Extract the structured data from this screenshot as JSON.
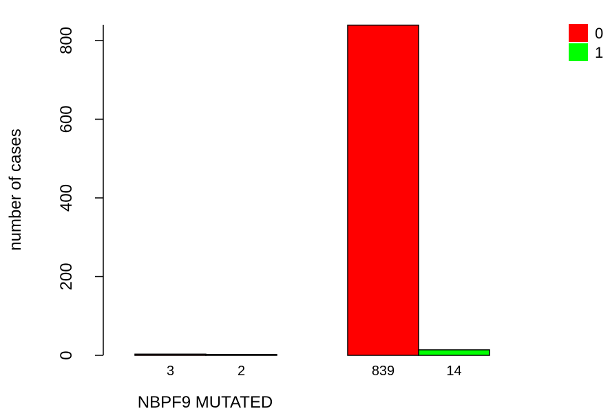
{
  "chart_data": {
    "type": "bar",
    "title": "",
    "xlabel": "NBPF9 MUTATED",
    "ylabel": "number of cases",
    "ylim": [
      0,
      840
    ],
    "yticks": [
      0,
      200,
      400,
      600,
      800
    ],
    "grid": false,
    "legend_position": "top-right",
    "groups": [
      "",
      ""
    ],
    "series": [
      {
        "name": "0",
        "color": "#ff0000",
        "values": [
          3,
          839
        ]
      },
      {
        "name": "1",
        "color": "#00ff00",
        "values": [
          2,
          14
        ]
      }
    ],
    "bar_labels": [
      [
        "3",
        "2"
      ],
      [
        "839",
        "14"
      ]
    ]
  }
}
